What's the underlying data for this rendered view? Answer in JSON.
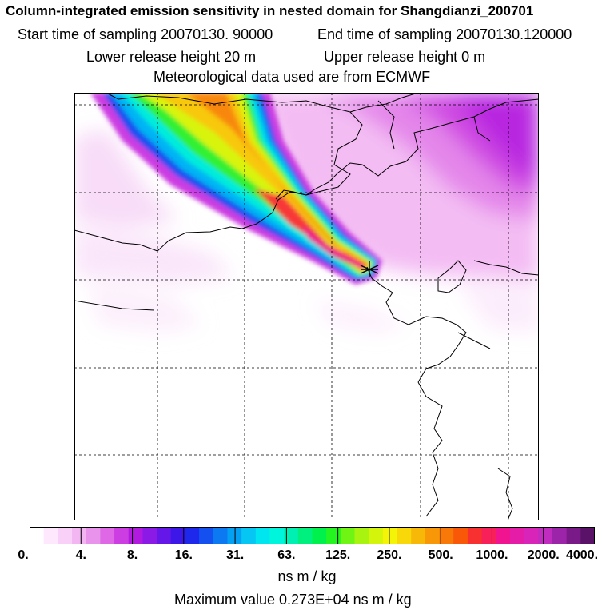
{
  "header": {
    "title": "Column-integrated emission sensitivity in nested domain for Shangdianzi_200701",
    "start": "Start time of sampling 20070130. 90000",
    "end": "End time of sampling 20070130.120000",
    "lower": "Lower release height   20 m",
    "upper": "Upper release height    0 m",
    "met": "Meteorological data used are from ECMWF"
  },
  "colorbar": {
    "ticks": [
      "0.",
      "4.",
      "8.",
      "16.",
      "31.",
      "63.",
      "125.",
      "250.",
      "500.",
      "1000.",
      "2000.",
      "4000."
    ],
    "colors": [
      "#ffffff",
      "#fde8fd",
      "#f9d0f8",
      "#f3b6f3",
      "#ea93ec",
      "#de68e6",
      "#cc3ee2",
      "#b31ae0",
      "#8c1ae6",
      "#6417e8",
      "#3c17e8",
      "#1e28ec",
      "#1450f0",
      "#0c78f2",
      "#04a0f4",
      "#06c6f4",
      "#00e6f0",
      "#00f6dc",
      "#00f0b4",
      "#00f080",
      "#00f04c",
      "#24f420",
      "#70f414",
      "#a8f410",
      "#d4f40c",
      "#f4f408",
      "#f8d808",
      "#f8b808",
      "#f89808",
      "#f87808",
      "#f85808",
      "#f83030",
      "#f82058",
      "#f01490",
      "#e41ca8",
      "#d824b8",
      "#c02cc0",
      "#9c24a8",
      "#7a1a88",
      "#5a1268"
    ],
    "unit": "ns m / kg",
    "max_label": "Maximum value  0.273E+04 ns m / kg"
  },
  "map": {
    "release_marker": "release-site-star"
  }
}
